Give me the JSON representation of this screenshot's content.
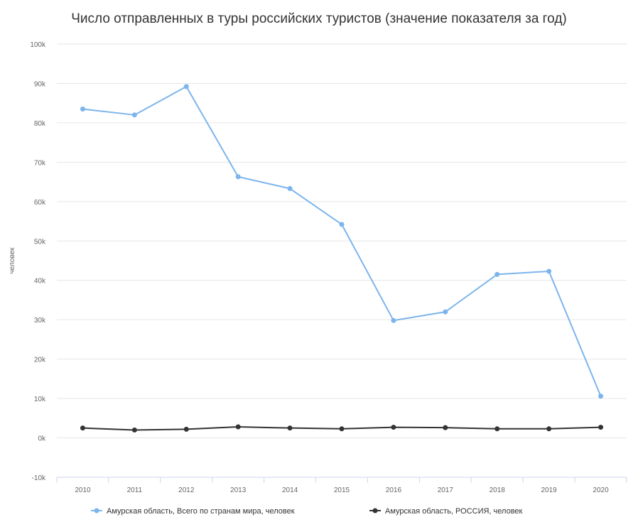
{
  "chart_data": {
    "type": "line",
    "title": "Число отправленных в туры российских туристов (значение показателя за год)",
    "ylabel": "человек",
    "xlabel": "",
    "categories": [
      "2010",
      "2011",
      "2012",
      "2013",
      "2014",
      "2015",
      "2016",
      "2017",
      "2018",
      "2019",
      "2020"
    ],
    "ylim": [
      -10000,
      100000
    ],
    "yticks": [
      -10000,
      0,
      10000,
      20000,
      30000,
      40000,
      50000,
      60000,
      70000,
      80000,
      90000,
      100000
    ],
    "ytick_labels": [
      "-10k",
      "0k",
      "10k",
      "20k",
      "30k",
      "40k",
      "50k",
      "60k",
      "70k",
      "80k",
      "90k",
      "100k"
    ],
    "grid": true,
    "legend_position": "bottom-center",
    "series": [
      {
        "name": "Амурская область, Всего по странам мира, человек",
        "color": "#7cb5ec",
        "values": [
          83500,
          82000,
          89200,
          66300,
          63300,
          54200,
          29800,
          32000,
          41500,
          42300,
          10600
        ]
      },
      {
        "name": "Амурская область, РОССИЯ, человек",
        "color": "#333333",
        "values": [
          2500,
          2000,
          2200,
          2800,
          2500,
          2300,
          2700,
          2600,
          2300,
          2300,
          2700
        ]
      }
    ]
  }
}
